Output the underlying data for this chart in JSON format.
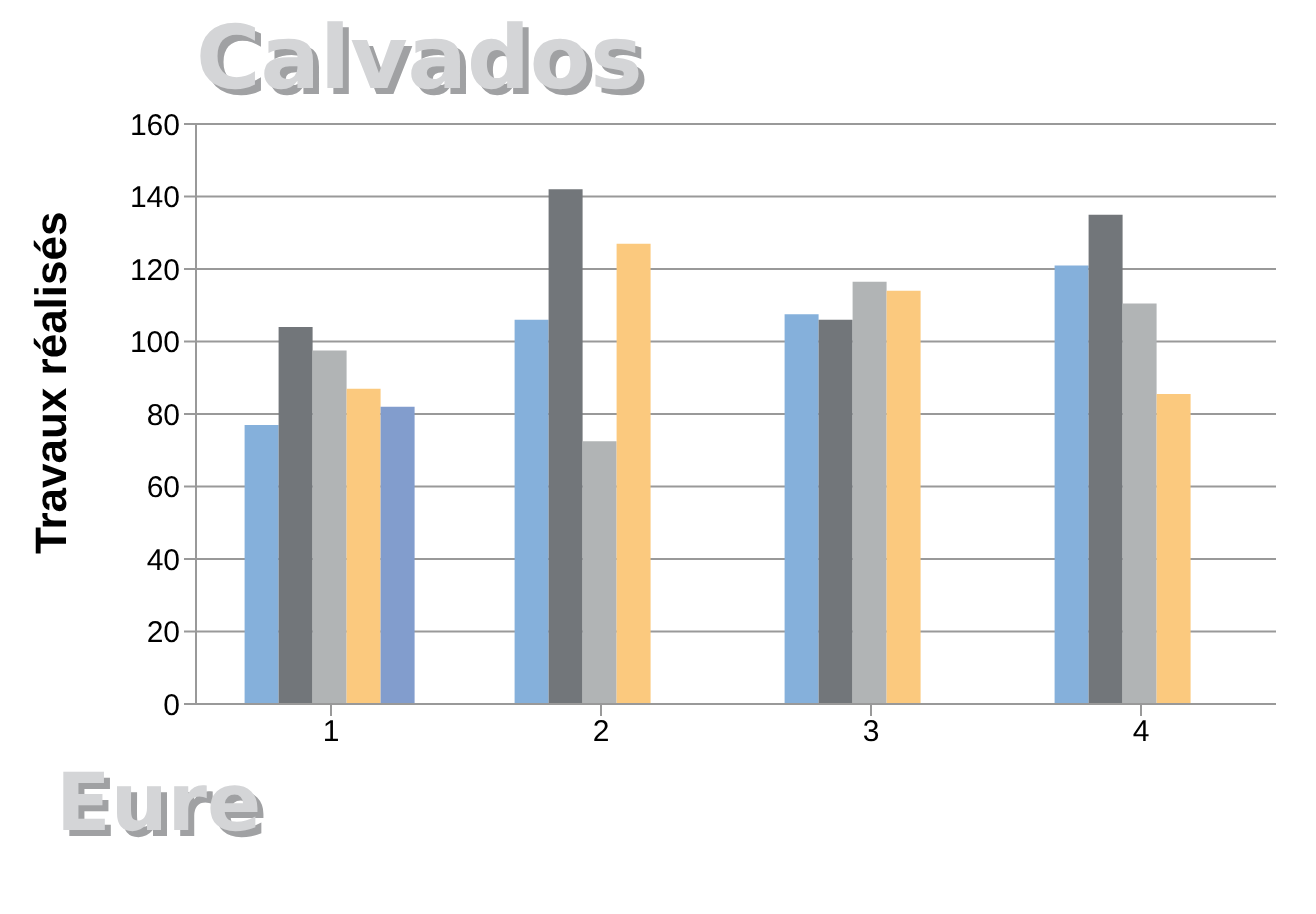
{
  "chart_data": {
    "type": "bar",
    "title": "Calvados",
    "annotations": [
      "Eure"
    ],
    "ylabel": "Travaux réalisés",
    "categories": [
      "1",
      "2",
      "3",
      "4"
    ],
    "series": [
      {
        "color": "#85b0db",
        "values": [
          77,
          106,
          107.5,
          121
        ]
      },
      {
        "color": "#72767a",
        "values": [
          104,
          142,
          106,
          135
        ]
      },
      {
        "color": "#b1b4b5",
        "values": [
          97.5,
          72.5,
          116.5,
          110.5
        ]
      },
      {
        "color": "#fbc97e",
        "values": [
          87,
          127,
          114,
          85.5
        ]
      },
      {
        "color": "#829dcd",
        "values": [
          82,
          null,
          null,
          null
        ]
      }
    ],
    "ylim": [
      0,
      160
    ],
    "yticks": [
      0,
      20,
      40,
      60,
      80,
      100,
      120,
      140,
      160
    ],
    "grid": "y",
    "legend": false
  }
}
